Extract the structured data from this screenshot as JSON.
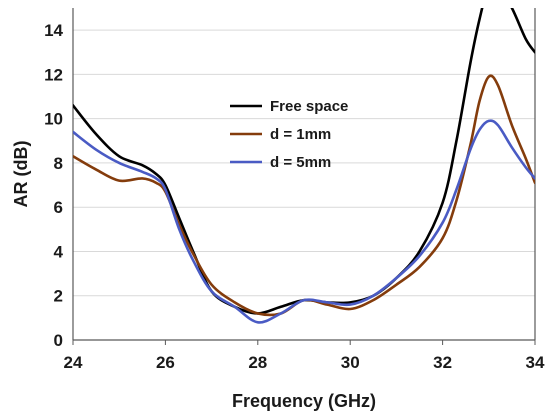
{
  "chart_data": {
    "type": "line",
    "xlabel": "Frequency (GHz)",
    "ylabel": "AR (dB)",
    "xlim": [
      24,
      34
    ],
    "ylim": [
      0,
      15
    ],
    "xticks": [
      24,
      26,
      28,
      30,
      32,
      34
    ],
    "yticks": [
      0,
      2,
      4,
      6,
      8,
      10,
      12,
      14
    ],
    "grid": "horizontal",
    "legend_position": "upper-center",
    "series": [
      {
        "name": "Free space",
        "color": "#000000",
        "x": [
          24,
          24.5,
          25,
          25.5,
          25.8,
          26,
          26.3,
          26.6,
          27,
          27.5,
          28,
          28.5,
          29,
          29.5,
          30,
          30.5,
          31,
          31.5,
          32,
          32.3,
          32.6,
          32.8,
          33,
          33.2,
          33.5,
          33.8,
          34
        ],
        "y": [
          10.6,
          9.3,
          8.3,
          7.9,
          7.5,
          7.0,
          5.5,
          4.0,
          2.2,
          1.5,
          1.2,
          1.5,
          1.8,
          1.7,
          1.7,
          2.0,
          2.8,
          4.0,
          6.2,
          9.0,
          12.5,
          14.5,
          16.0,
          16.0,
          15.0,
          13.6,
          13.0
        ]
      },
      {
        "name": "d = 1mm",
        "color": "#843c0c",
        "x": [
          24,
          24.5,
          25,
          25.5,
          25.8,
          26,
          26.3,
          26.6,
          27,
          27.5,
          28,
          28.5,
          29,
          29.5,
          30,
          30.5,
          31,
          31.5,
          32,
          32.3,
          32.6,
          32.8,
          33,
          33.2,
          33.5,
          33.8,
          34
        ],
        "y": [
          8.3,
          7.7,
          7.2,
          7.3,
          7.1,
          6.7,
          5.2,
          3.9,
          2.5,
          1.7,
          1.2,
          1.2,
          1.8,
          1.6,
          1.4,
          1.8,
          2.5,
          3.3,
          4.6,
          6.3,
          8.8,
          10.8,
          11.9,
          11.5,
          9.7,
          8.2,
          7.1
        ]
      },
      {
        "name": "d = 5mm",
        "color": "#4a5bc4",
        "x": [
          24,
          24.5,
          25,
          25.5,
          25.8,
          26,
          26.3,
          26.6,
          27,
          27.5,
          28,
          28.5,
          29,
          29.5,
          30,
          30.5,
          31,
          31.5,
          32,
          32.3,
          32.6,
          32.8,
          33,
          33.2,
          33.5,
          33.8,
          34
        ],
        "y": [
          9.4,
          8.6,
          8.0,
          7.6,
          7.3,
          6.8,
          5.0,
          3.6,
          2.2,
          1.5,
          0.8,
          1.2,
          1.8,
          1.7,
          1.6,
          2.0,
          2.8,
          3.8,
          5.3,
          6.8,
          8.6,
          9.5,
          9.9,
          9.7,
          8.7,
          7.8,
          7.3
        ]
      }
    ]
  }
}
